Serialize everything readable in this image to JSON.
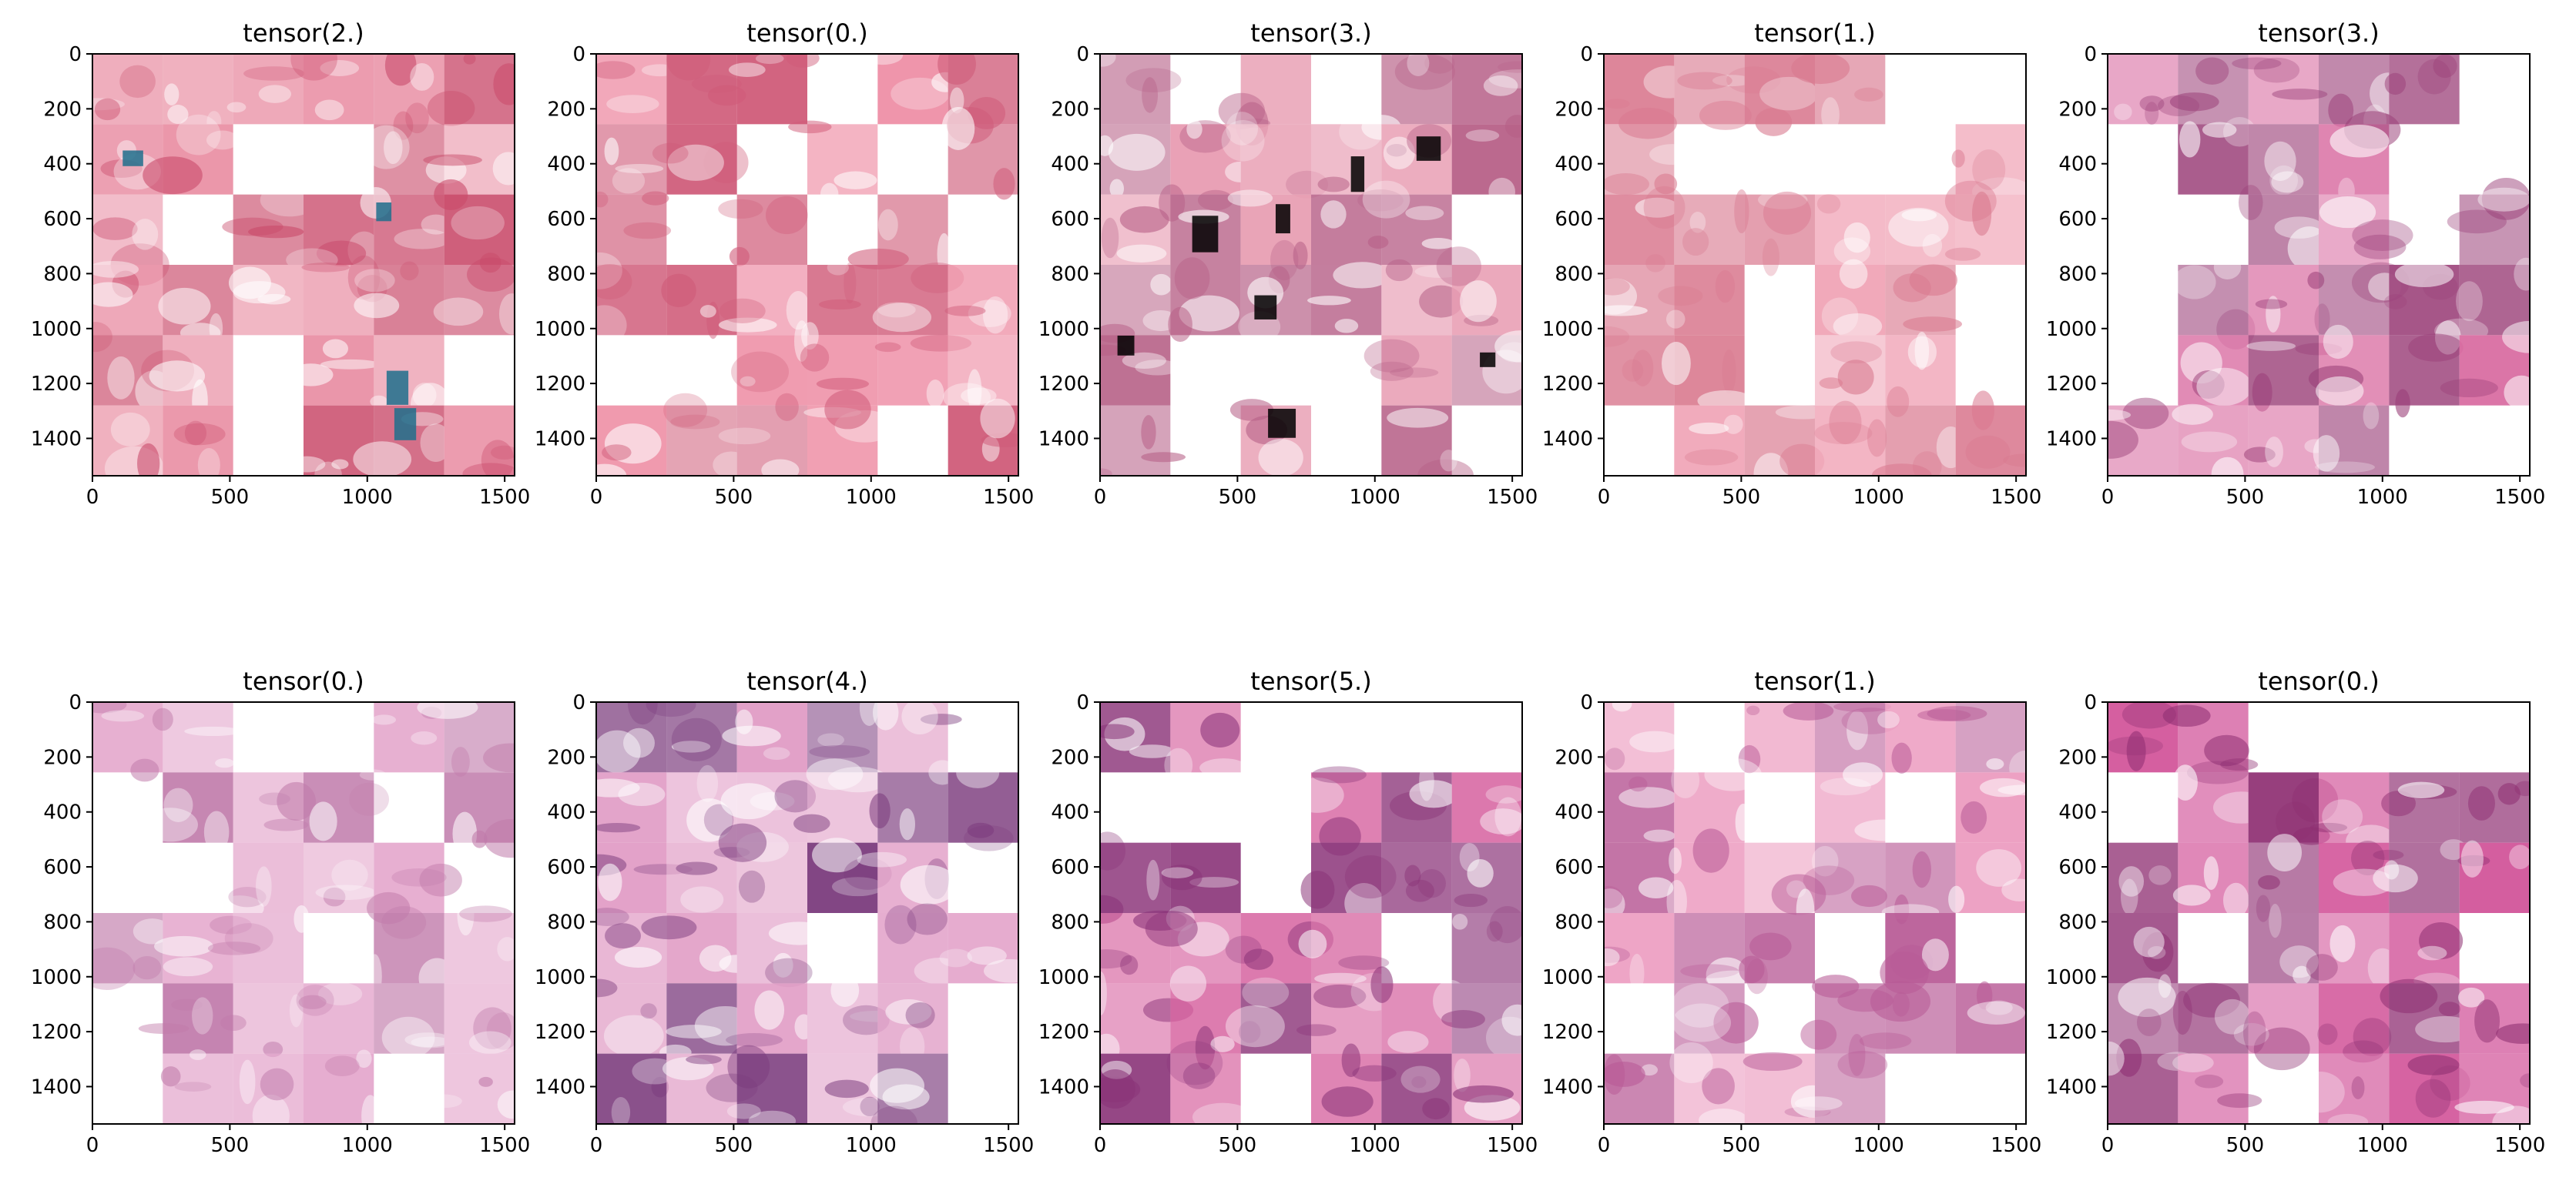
{
  "chart_data": {
    "type": "image-grid",
    "grid": {
      "rows": 2,
      "cols": 5
    },
    "xlim": [
      0,
      1536
    ],
    "ylim": [
      1536,
      0
    ],
    "xticks": [
      0,
      500,
      1000,
      1500
    ],
    "yticks": [
      0,
      200,
      400,
      600,
      800,
      1000,
      1200,
      1400
    ],
    "tile_grid": 6,
    "panels": [
      {
        "title": "tensor(2.)",
        "tint": "#e88aa0",
        "dark": "#c94a6a",
        "stain": "#1f6e8c",
        "seed": 11
      },
      {
        "title": "tensor(0.)",
        "tint": "#ee8fa6",
        "dark": "#cf5a78",
        "stain": null,
        "seed": 23
      },
      {
        "title": "tensor(3.)",
        "tint": "#e79ab0",
        "dark": "#b65f86",
        "stain": "#000000",
        "seed": 37
      },
      {
        "title": "tensor(1.)",
        "tint": "#f0a4b6",
        "dark": "#d9798f",
        "stain": null,
        "seed": 41
      },
      {
        "title": "tensor(3.)",
        "tint": "#d86aa0",
        "dark": "#9a3f78",
        "stain": null,
        "seed": 53
      },
      {
        "title": "tensor(0.)",
        "tint": "#e2a0c8",
        "dark": "#c07aaa",
        "stain": null,
        "seed": 67
      },
      {
        "title": "tensor(4.)",
        "tint": "#e09ac4",
        "dark": "#7a3a7c",
        "stain": null,
        "seed": 71
      },
      {
        "title": "tensor(5.)",
        "tint": "#d45a9a",
        "dark": "#8a3378",
        "stain": null,
        "seed": 83
      },
      {
        "title": "tensor(1.)",
        "tint": "#ec9cc0",
        "dark": "#b85a96",
        "stain": null,
        "seed": 97
      },
      {
        "title": "tensor(0.)",
        "tint": "#d2559a",
        "dark": "#8e2f72",
        "stain": null,
        "seed": 101
      }
    ]
  }
}
